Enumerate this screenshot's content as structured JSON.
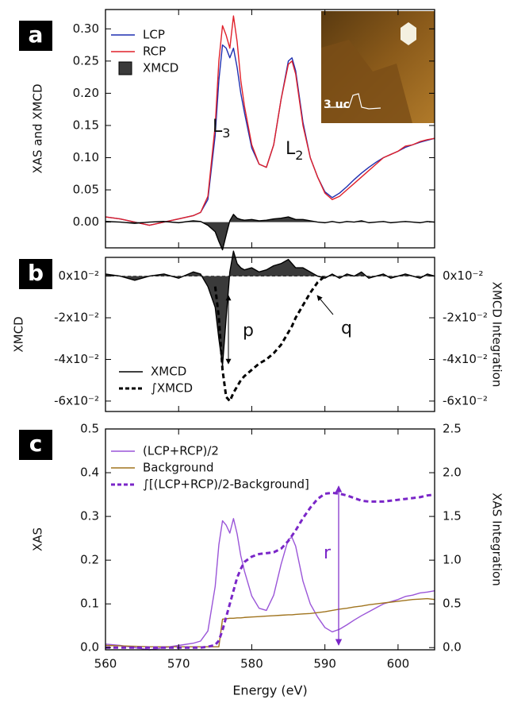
{
  "chart_data": [
    {
      "type": "line",
      "panel_label": "a",
      "ylabel": "XAS and XMCD",
      "inset_label": "3 uc",
      "x": [
        560,
        562,
        564,
        566,
        568,
        570,
        572,
        573,
        574,
        575,
        575.5,
        576,
        576.5,
        577,
        577.5,
        578,
        578.5,
        579,
        580,
        581,
        582,
        583,
        584,
        585,
        585.5,
        586,
        587,
        588,
        589,
        590,
        591,
        592,
        593,
        594,
        595,
        596,
        597,
        598,
        599,
        600,
        601,
        602,
        603,
        604,
        605
      ],
      "xlim": [
        560,
        605
      ],
      "xticks": [
        560,
        570,
        580,
        590,
        600
      ],
      "ylim": [
        -0.04,
        0.33
      ],
      "yticks": [
        {
          "value": 0,
          "label": "0.00"
        },
        0.05,
        {
          "value": 0.1,
          "label": "0.10"
        },
        0.15,
        {
          "value": 0.2,
          "label": "0.20"
        },
        0.25,
        {
          "value": 0.3,
          "label": "0.30"
        }
      ],
      "legend": "upper left",
      "series": [
        {
          "name": "LCP",
          "color": "#1f2fb0",
          "values": [
            0.008,
            0.005,
            0.0,
            -0.005,
            0.0,
            0.005,
            0.01,
            0.015,
            0.035,
            0.135,
            0.22,
            0.275,
            0.27,
            0.255,
            0.27,
            0.24,
            0.2,
            0.17,
            0.115,
            0.09,
            0.085,
            0.12,
            0.19,
            0.25,
            0.255,
            0.235,
            0.155,
            0.1,
            0.07,
            0.047,
            0.038,
            0.045,
            0.055,
            0.066,
            0.076,
            0.085,
            0.093,
            0.1,
            0.105,
            0.11,
            0.116,
            0.12,
            0.124,
            0.127,
            0.13
          ]
        },
        {
          "name": "RCP",
          "color": "#e0202a",
          "values": [
            0.008,
            0.005,
            0.0,
            -0.005,
            0.0,
            0.005,
            0.01,
            0.015,
            0.04,
            0.15,
            0.25,
            0.305,
            0.29,
            0.27,
            0.32,
            0.28,
            0.22,
            0.18,
            0.12,
            0.09,
            0.085,
            0.12,
            0.19,
            0.245,
            0.25,
            0.23,
            0.15,
            0.1,
            0.07,
            0.045,
            0.035,
            0.04,
            0.05,
            0.06,
            0.07,
            0.08,
            0.09,
            0.1,
            0.105,
            0.11,
            0.118,
            0.12,
            0.125,
            0.128,
            0.13
          ]
        },
        {
          "name": "XMCD",
          "color": "#000000",
          "fill": "#3a3a3a",
          "values": [
            0.001,
            0.0,
            -0.002,
            0.0,
            0.001,
            -0.001,
            0.002,
            0.001,
            -0.005,
            -0.015,
            -0.03,
            -0.043,
            -0.02,
            0.002,
            0.012,
            0.006,
            0.004,
            0.003,
            0.004,
            0.002,
            0.003,
            0.005,
            0.006,
            0.008,
            0.006,
            0.004,
            0.004,
            0.002,
            0.0,
            -0.001,
            0.001,
            -0.001,
            0.001,
            0.0,
            0.002,
            -0.001,
            0.0,
            0.001,
            -0.001,
            0.0,
            0.001,
            0.0,
            -0.001,
            0.001,
            0.0
          ]
        }
      ],
      "annotations": [
        {
          "text": "L",
          "sub": "3"
        },
        {
          "text": "L",
          "sub": "2"
        }
      ]
    },
    {
      "type": "line",
      "panel_label": "b",
      "ylabel": "XMCD",
      "y2label": "XMCD Integration",
      "zero_line": true,
      "x": [
        560,
        562,
        564,
        566,
        568,
        570,
        572,
        573,
        574,
        575,
        575.5,
        576,
        576.5,
        577,
        577.5,
        578,
        578.5,
        579,
        580,
        581,
        582,
        583,
        584,
        585,
        585.5,
        586,
        587,
        588,
        589,
        590,
        591,
        592,
        593,
        594,
        595,
        596,
        597,
        598,
        599,
        600,
        601,
        602,
        603,
        604,
        605
      ],
      "xlim": [
        560,
        605
      ],
      "xticks": [
        560,
        570,
        580,
        590,
        600
      ],
      "ylim": [
        -0.065,
        0.009
      ],
      "yticks": [
        {
          "value": 0,
          "label": "0x10⁻²"
        },
        {
          "value": -0.02,
          "label": "-2x10⁻²"
        },
        {
          "value": -0.04,
          "label": "-4x10⁻²"
        },
        {
          "value": -0.06,
          "label": "-6x10⁻²"
        }
      ],
      "y2lim": [
        -0.065,
        0.009
      ],
      "y2ticks": [
        {
          "value": 0,
          "label": "0x10⁻²"
        },
        {
          "value": -0.02,
          "label": "-2x10⁻²"
        },
        {
          "value": -0.04,
          "label": "-4x10⁻²"
        },
        {
          "value": -0.06,
          "label": "-6x10⁻²"
        }
      ],
      "legend": "lower left",
      "series": [
        {
          "name": "XMCD",
          "color": "#000000",
          "fill": "#3a3a3a",
          "values": [
            0.001,
            0.0,
            -0.002,
            0.0,
            0.001,
            -0.001,
            0.002,
            0.001,
            -0.005,
            -0.015,
            -0.03,
            -0.043,
            -0.02,
            0.002,
            0.012,
            0.006,
            0.004,
            0.003,
            0.004,
            0.002,
            0.003,
            0.005,
            0.006,
            0.008,
            0.006,
            0.004,
            0.004,
            0.002,
            0.0,
            -0.001,
            0.001,
            -0.001,
            0.001,
            0.0,
            0.002,
            -0.001,
            0.0,
            0.001,
            -0.001,
            0.0,
            0.001,
            0.0,
            -0.001,
            0.001,
            0.0
          ]
        },
        {
          "name": "∫XMCD",
          "color": "#000000",
          "dash": true,
          "axis": "y2",
          "values": [
            null,
            null,
            null,
            null,
            null,
            null,
            null,
            null,
            null,
            -0.005,
            -0.02,
            -0.045,
            -0.058,
            -0.06,
            -0.056,
            -0.053,
            -0.05,
            -0.048,
            -0.045,
            -0.042,
            -0.04,
            -0.037,
            -0.033,
            -0.027,
            -0.024,
            -0.02,
            -0.014,
            -0.008,
            -0.003,
            0.0,
            null,
            null,
            null,
            null,
            null,
            null,
            null,
            null,
            null,
            null,
            null,
            null,
            null,
            null,
            null
          ]
        }
      ],
      "annotations": [
        {
          "text": "p"
        },
        {
          "text": "q"
        }
      ]
    },
    {
      "type": "line",
      "panel_label": "c",
      "ylabel": "XAS",
      "y2label": "XAS  Integration",
      "xlabel": "Energy (eV)",
      "x": [
        560,
        562,
        564,
        566,
        568,
        570,
        572,
        573,
        574,
        575,
        575.5,
        576,
        576.5,
        577,
        577.5,
        578,
        578.5,
        579,
        580,
        581,
        582,
        583,
        584,
        585,
        585.5,
        586,
        587,
        588,
        589,
        590,
        591,
        592,
        593,
        594,
        595,
        596,
        597,
        598,
        599,
        600,
        601,
        602,
        603,
        604,
        605
      ],
      "xlim": [
        560,
        605
      ],
      "xticks": [
        560,
        570,
        580,
        590,
        600
      ],
      "ylim": [
        -0.005,
        0.5
      ],
      "yticks": [
        {
          "value": 0,
          "label": "0.0"
        },
        0.1,
        0.2,
        0.3,
        0.4,
        0.5
      ],
      "y2lim": [
        -0.025,
        2.5
      ],
      "y2ticks": [
        {
          "value": 0,
          "label": "0.0"
        },
        0.5,
        {
          "value": 1,
          "label": "1.0"
        },
        1.5,
        {
          "value": 2,
          "label": "2.0"
        },
        2.5
      ],
      "legend": "upper left",
      "series": [
        {
          "name": "(LCP+RCP)/2",
          "color": "#9a55d8",
          "values": [
            0.008,
            0.005,
            0.0,
            -0.005,
            0.0,
            0.005,
            0.01,
            0.015,
            0.038,
            0.14,
            0.235,
            0.29,
            0.28,
            0.262,
            0.295,
            0.26,
            0.21,
            0.175,
            0.118,
            0.09,
            0.085,
            0.12,
            0.19,
            0.248,
            0.252,
            0.232,
            0.152,
            0.1,
            0.07,
            0.046,
            0.036,
            0.042,
            0.052,
            0.063,
            0.073,
            0.082,
            0.091,
            0.1,
            0.105,
            0.11,
            0.117,
            0.12,
            0.125,
            0.127,
            0.13
          ]
        },
        {
          "name": "Background",
          "color": "#a0741e",
          "values": [
            0.005,
            0.004,
            0.003,
            0.002,
            0.002,
            0.002,
            0.002,
            0.002,
            0.002,
            0.002,
            0.002,
            0.065,
            0.066,
            0.067,
            0.067,
            0.068,
            0.068,
            0.069,
            0.07,
            0.071,
            0.072,
            0.073,
            0.074,
            0.075,
            0.075,
            0.076,
            0.077,
            0.078,
            0.08,
            0.082,
            0.085,
            0.088,
            0.09,
            0.093,
            0.095,
            0.098,
            0.1,
            0.102,
            0.104,
            0.106,
            0.108,
            0.11,
            0.111,
            0.112,
            0.11
          ]
        },
        {
          "name": "∫[(LCP+RCP)/2-Background]",
          "color": "#7a26c8",
          "dash": true,
          "axis": "y2",
          "values": [
            0,
            0,
            0,
            0,
            0,
            0,
            0,
            0,
            0.01,
            0.03,
            0.08,
            0.2,
            0.35,
            0.5,
            0.65,
            0.8,
            0.9,
            0.98,
            1.04,
            1.07,
            1.08,
            1.09,
            1.13,
            1.22,
            1.28,
            1.34,
            1.48,
            1.6,
            1.7,
            1.76,
            1.77,
            1.76,
            1.74,
            1.71,
            1.68,
            1.67,
            1.67,
            1.67,
            1.68,
            1.69,
            1.7,
            1.71,
            1.72,
            1.74,
            1.75
          ]
        }
      ],
      "annotations": [
        {
          "text": "r"
        }
      ]
    }
  ]
}
